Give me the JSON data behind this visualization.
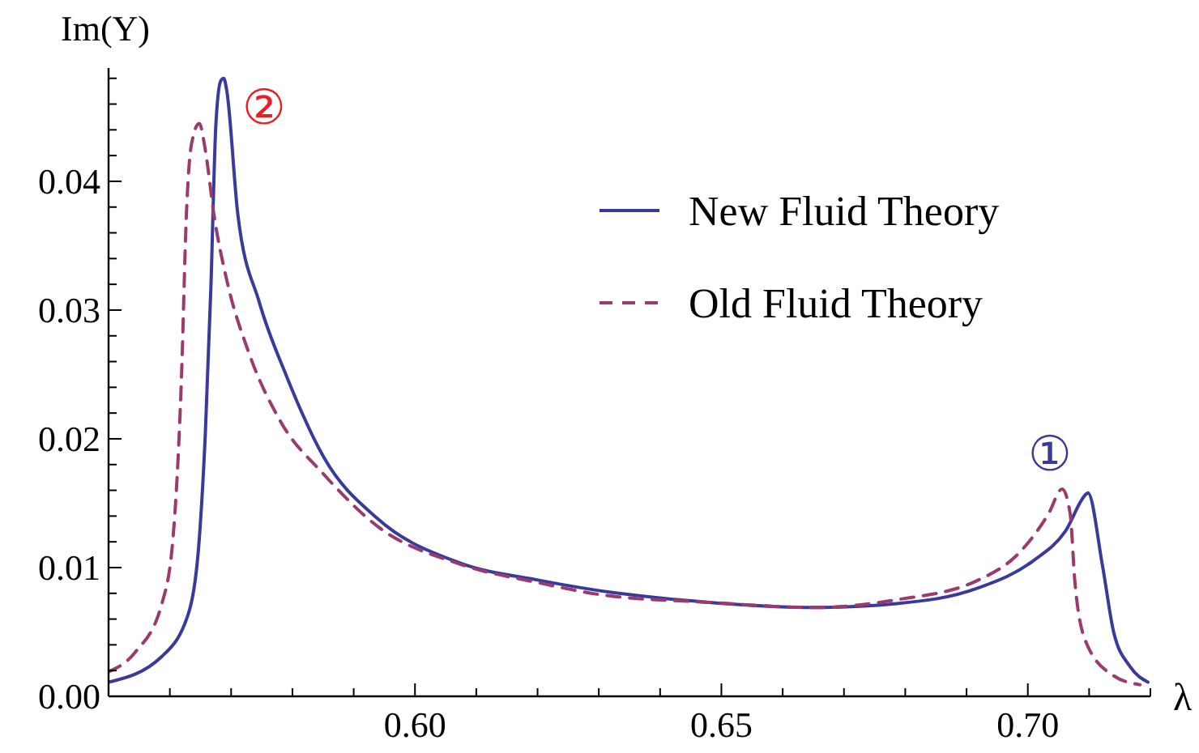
{
  "chart_data": {
    "type": "line",
    "xlabel": "λ",
    "ylabel": "Im(Y)",
    "xlim": [
      0.55,
      0.72
    ],
    "ylim": [
      0,
      0.0488
    ],
    "xticks": [
      {
        "value": 0.56,
        "label": null
      },
      {
        "value": 0.57,
        "label": null
      },
      {
        "value": 0.58,
        "label": null
      },
      {
        "value": 0.59,
        "label": null
      },
      {
        "value": 0.6,
        "label": "0.60"
      },
      {
        "value": 0.61,
        "label": null
      },
      {
        "value": 0.62,
        "label": null
      },
      {
        "value": 0.63,
        "label": null
      },
      {
        "value": 0.64,
        "label": null
      },
      0.65,
      {
        "value": 0.66,
        "label": null
      },
      {
        "value": 0.67,
        "label": null
      },
      {
        "value": 0.68,
        "label": null
      },
      {
        "value": 0.69,
        "label": null
      },
      {
        "value": 0.7,
        "label": "0.70"
      },
      {
        "value": 0.71,
        "label": null
      },
      {
        "value": 0.72,
        "label": null
      }
    ],
    "yticks": [
      {
        "value": 0,
        "label": "0.00"
      },
      {
        "value": 0.002,
        "label": null
      },
      {
        "value": 0.004,
        "label": null
      },
      {
        "value": 0.006,
        "label": null
      },
      {
        "value": 0.008,
        "label": null
      },
      0.01,
      {
        "value": 0.012,
        "label": null
      },
      {
        "value": 0.014,
        "label": null
      },
      {
        "value": 0.016,
        "label": null
      },
      {
        "value": 0.018,
        "label": null
      },
      {
        "value": 0.02,
        "label": "0.02"
      },
      {
        "value": 0.022,
        "label": null
      },
      {
        "value": 0.024,
        "label": null
      },
      {
        "value": 0.026,
        "label": null
      },
      {
        "value": 0.028,
        "label": null
      },
      {
        "value": 0.03,
        "label": "0.03"
      },
      {
        "value": 0.032,
        "label": null
      },
      {
        "value": 0.034,
        "label": null
      },
      {
        "value": 0.036,
        "label": null
      },
      {
        "value": 0.038,
        "label": null
      },
      0.04,
      {
        "value": 0.042,
        "label": null
      },
      {
        "value": 0.044,
        "label": null
      },
      {
        "value": 0.046,
        "label": null
      },
      {
        "value": 0.048,
        "label": null
      }
    ],
    "grid": false,
    "legend": "right",
    "marker": "none",
    "series": [
      {
        "name": "New Fluid Theory",
        "color": "#3a3a9a",
        "line_style": "solid",
        "x": [
          0.55,
          0.5587,
          0.5632,
          0.5648,
          0.5658,
          0.5667,
          0.5675,
          0.5683,
          0.5688,
          0.5693,
          0.5711,
          0.5746,
          0.5791,
          0.5852,
          0.5939,
          0.6071,
          0.6204,
          0.6302,
          0.6479,
          0.6653,
          0.6786,
          0.6918,
          0.7008,
          0.7061,
          0.7095,
          0.7098,
          0.7122,
          0.714,
          0.7167,
          0.7196
        ],
        "values": [
          0.0011,
          0.0031,
          0.0067,
          0.0122,
          0.0205,
          0.0318,
          0.0443,
          0.0478,
          0.048,
          0.047,
          0.0374,
          0.0306,
          0.0248,
          0.0185,
          0.0138,
          0.0104,
          0.009,
          0.0082,
          0.0073,
          0.0069,
          0.0072,
          0.0084,
          0.0105,
          0.0128,
          0.0157,
          0.0158,
          0.0101,
          0.005,
          0.0023,
          0.0011
        ]
      },
      {
        "name": "Old Fluid Theory",
        "color": "#9b3a6e",
        "line_style": "dashed",
        "x": [
          0.55,
          0.5543,
          0.5587,
          0.5605,
          0.5619,
          0.5627,
          0.5635,
          0.5648,
          0.5658,
          0.5672,
          0.5693,
          0.5728,
          0.578,
          0.5852,
          0.5939,
          0.6071,
          0.6204,
          0.6302,
          0.6479,
          0.6653,
          0.6786,
          0.6918,
          0.6989,
          0.7034,
          0.7056,
          0.7069,
          0.7077,
          0.7095,
          0.714,
          0.7183
        ],
        "values": [
          0.0019,
          0.0034,
          0.0072,
          0.0122,
          0.0248,
          0.0374,
          0.0428,
          0.0445,
          0.0424,
          0.0374,
          0.0323,
          0.0268,
          0.0214,
          0.0172,
          0.0132,
          0.0103,
          0.0088,
          0.0079,
          0.0073,
          0.0069,
          0.0075,
          0.009,
          0.0113,
          0.0142,
          0.0161,
          0.0142,
          0.0088,
          0.0042,
          0.0016,
          0.0009
        ]
      }
    ],
    "annotations": [
      "②",
      "①"
    ]
  }
}
